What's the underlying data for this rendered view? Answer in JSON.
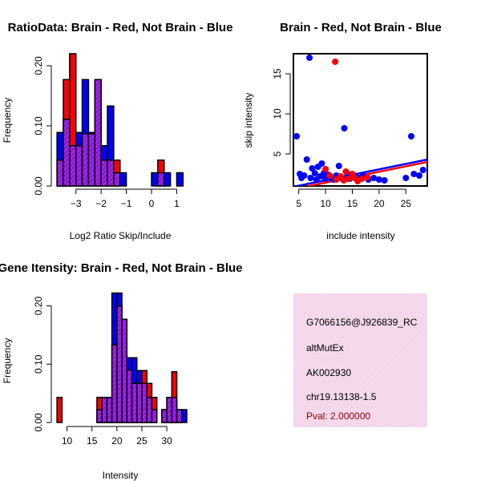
{
  "colors": {
    "brain": "#ff0000",
    "not_brain": "#0000ff",
    "overlap": "#a020f0",
    "info_bg": "#f6dcee",
    "pval": "#8b0000"
  },
  "chart_data": [
    {
      "id": "ratio",
      "type": "bar",
      "title": "RatioData: Brain - Red, Not Brain - Blue",
      "xlabel": "Log2 Ratio Skip/Include",
      "ylabel": "Frequency",
      "xlim": [
        -3.85,
        1.4
      ],
      "ylim": [
        0,
        0.22
      ],
      "xticks": [
        -3,
        -2,
        -1,
        0,
        1
      ],
      "xtick_labels": [
        "−3",
        "−2",
        "−1",
        "0",
        "1"
      ],
      "yticks": [
        0,
        0.1,
        0.2
      ],
      "ytick_labels": [
        "0.00",
        "0.10",
        "0.20"
      ],
      "bin_starts": [
        -3.75,
        -3.5,
        -3.25,
        -3.0,
        -2.75,
        -2.5,
        -2.25,
        -2.0,
        -1.75,
        -1.5,
        -1.25,
        -1.0,
        -0.75,
        -0.5,
        -0.25,
        0.0,
        0.25,
        0.5,
        0.75,
        1.0
      ],
      "bin_width": 0.25,
      "series": [
        {
          "name": "Brain",
          "values": [
            0.043,
            0.177,
            0.22,
            0.067,
            0.087,
            0.087,
            0.177,
            0.043,
            0.043,
            0.043,
            0,
            0,
            0,
            0,
            0,
            0,
            0.043,
            0,
            0,
            0
          ]
        },
        {
          "name": "Not Brain",
          "values": [
            0.089,
            0.111,
            0.067,
            0.089,
            0.177,
            0.089,
            0.177,
            0.067,
            0.133,
            0.022,
            0.022,
            0,
            0,
            0,
            0,
            0.022,
            0.022,
            0.022,
            0,
            0.022
          ]
        }
      ]
    },
    {
      "id": "scatter",
      "type": "scatter",
      "title": "Brain - Red, Not Brain - Blue",
      "xlabel": "include intensity",
      "ylabel": "skip intensity",
      "xlim": [
        4,
        29
      ],
      "ylim": [
        1,
        17.5
      ],
      "xticks": [
        5,
        10,
        15,
        20,
        25
      ],
      "xtick_labels": [
        "5",
        "10",
        "15",
        "20",
        "25"
      ],
      "yticks": [
        5,
        10,
        15
      ],
      "ytick_labels": [
        "5",
        "10",
        "15"
      ],
      "series": [
        {
          "name": "Not Brain",
          "points": [
            [
              4.6,
              7.2
            ],
            [
              5.2,
              2.5
            ],
            [
              5.5,
              2.0
            ],
            [
              6.0,
              2.3
            ],
            [
              6.5,
              4.3
            ],
            [
              7.0,
              17.0
            ],
            [
              7.2,
              2.0
            ],
            [
              7.5,
              3.2
            ],
            [
              8.0,
              2.6
            ],
            [
              8.3,
              1.8
            ],
            [
              8.6,
              3.4
            ],
            [
              9.0,
              2.2
            ],
            [
              9.3,
              3.8
            ],
            [
              9.7,
              2.6
            ],
            [
              10.0,
              1.9
            ],
            [
              10.5,
              2.4
            ],
            [
              11.0,
              2.0
            ],
            [
              11.5,
              1.8
            ],
            [
              12.0,
              2.3
            ],
            [
              12.5,
              3.5
            ],
            [
              13.0,
              2.0
            ],
            [
              13.5,
              8.2
            ],
            [
              14.0,
              2.6
            ],
            [
              14.5,
              1.9
            ],
            [
              15.0,
              2.2
            ],
            [
              16.0,
              2.0
            ],
            [
              17.0,
              2.3
            ],
            [
              18.0,
              1.8
            ],
            [
              19.0,
              2.0
            ],
            [
              20.0,
              1.8
            ],
            [
              21.0,
              1.7
            ],
            [
              25.0,
              2.0
            ],
            [
              26.0,
              7.2
            ],
            [
              26.5,
              2.5
            ],
            [
              27.5,
              2.3
            ],
            [
              28.2,
              3.0
            ]
          ]
        },
        {
          "name": "Brain",
          "points": [
            [
              10.0,
              3.1
            ],
            [
              10.8,
              2.3
            ],
            [
              11.8,
              16.5
            ],
            [
              12.0,
              1.8
            ],
            [
              12.8,
              2.2
            ],
            [
              13.4,
              1.7
            ],
            [
              13.8,
              2.8
            ],
            [
              14.2,
              1.9
            ],
            [
              15.0,
              2.5
            ],
            [
              15.4,
              2.0
            ],
            [
              16.0,
              1.6
            ],
            [
              16.8,
              1.9
            ],
            [
              17.8,
              2.1
            ]
          ]
        }
      ],
      "fits": [
        {
          "name": "Not Brain",
          "x": [
            4,
            29
          ],
          "y": [
            0.9,
            4.3
          ]
        },
        {
          "name": "Brain",
          "x": [
            4,
            29
          ],
          "y": [
            0.6,
            4.0
          ]
        }
      ]
    },
    {
      "id": "intensity",
      "type": "bar",
      "title": "Gene Itensity: Brain - Red, Not Brain - Blue",
      "xlabel": "Intensity",
      "ylabel": "Frequency",
      "xlim": [
        7.5,
        34
      ],
      "ylim": [
        0,
        0.22
      ],
      "xticks": [
        10,
        15,
        20,
        25,
        30
      ],
      "xtick_labels": [
        "10",
        "15",
        "20",
        "25",
        "30"
      ],
      "yticks": [
        0,
        0.1,
        0.2
      ],
      "ytick_labels": [
        "0.00",
        "0.10",
        "0.20"
      ],
      "bin_starts": [
        8,
        9,
        10,
        11,
        12,
        13,
        14,
        15,
        16,
        17,
        18,
        19,
        20,
        21,
        22,
        23,
        24,
        25,
        26,
        27,
        28,
        29,
        30,
        31,
        32,
        33
      ],
      "bin_width": 1,
      "series": [
        {
          "name": "Brain",
          "values": [
            0.043,
            0,
            0,
            0,
            0,
            0,
            0,
            0,
            0.043,
            0.043,
            0.043,
            0.133,
            0.2,
            0.177,
            0.09,
            0.067,
            0.067,
            0.089,
            0.067,
            0.043,
            0,
            0.022,
            0.043,
            0.087,
            0.022,
            0
          ]
        },
        {
          "name": "Not Brain",
          "values": [
            0,
            0,
            0,
            0,
            0,
            0,
            0,
            0,
            0.022,
            0.043,
            0.043,
            0.222,
            0.222,
            0.177,
            0.111,
            0.111,
            0.089,
            0.067,
            0.043,
            0.022,
            0,
            0.022,
            0.043,
            0.043,
            0.022,
            0.022
          ]
        }
      ]
    }
  ],
  "info": {
    "probe_id": "G7066156@J926839_RC",
    "event_type": "altMutEx",
    "accession": "AK002930",
    "location": "chr19.13138-1.5",
    "pval": "Pval: 2.000000"
  }
}
